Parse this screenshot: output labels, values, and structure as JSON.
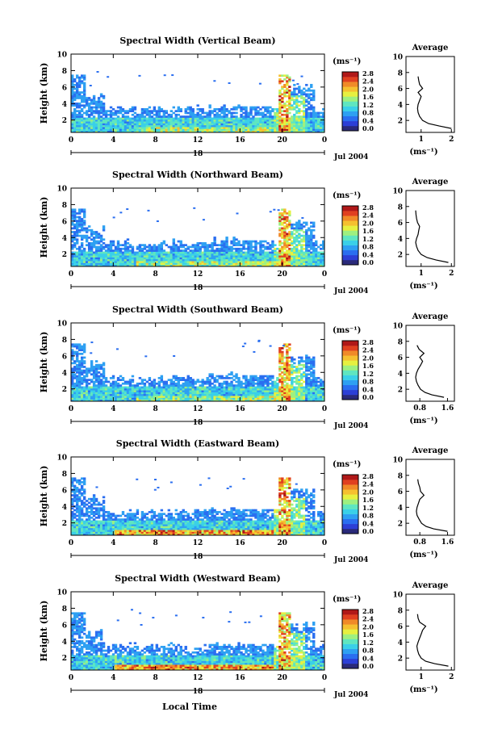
{
  "chart_data": {
    "common": {
      "ylabel": "Height (km)",
      "yticks": [
        "2",
        "4",
        "6",
        "8",
        "10"
      ],
      "ylim": [
        0.5,
        10
      ],
      "xticks": [
        "0",
        "4",
        "8",
        "12",
        "16",
        "20",
        "0"
      ],
      "xlim": [
        0,
        24
      ],
      "date_tick": "18",
      "date_label": "Jul 2004",
      "xlabel": "Local Time",
      "colorbar_unit": "(ms⁻¹)",
      "colorbar_ticks": [
        "0.0",
        "0.4",
        "0.8",
        "1.2",
        "1.6",
        "2.0",
        "2.4",
        "2.8"
      ],
      "colorbar_range": [
        0.0,
        2.8
      ],
      "colorscale": [
        "#2a2a7a",
        "#2c3fd6",
        "#2a6ef0",
        "#2ea0f2",
        "#3ad0e8",
        "#5fe6c0",
        "#9ef080",
        "#e6f040",
        "#f5c030",
        "#f08a28",
        "#e04020",
        "#b01818"
      ],
      "avg_title": "Average",
      "avg_xlabel": "(ms⁻¹)",
      "avg_height_km": [
        1.0,
        1.3,
        1.6,
        2.0,
        2.5,
        3.0,
        3.5,
        4.0,
        4.5,
        5.0,
        5.5,
        6.0,
        6.5,
        7.0,
        7.5
      ]
    },
    "panels": [
      {
        "title": "Spectral Width (Vertical Beam)",
        "type": "heatmap",
        "avg_xlim": [
          0.5,
          2.1
        ],
        "avg_xticks": [
          "1",
          "2"
        ],
        "avg_xtick_values": [
          1,
          2
        ],
        "avg_width": [
          2.0,
          1.6,
          1.25,
          1.05,
          0.95,
          0.9,
          0.88,
          0.9,
          0.95,
          1.0,
          0.9,
          1.05,
          0.95,
          0.92,
          0.9
        ]
      },
      {
        "title": "Spectral Width (Northward Beam)",
        "type": "heatmap",
        "avg_xlim": [
          0.5,
          2.1
        ],
        "avg_xticks": [
          "1",
          "2"
        ],
        "avg_xtick_values": [
          1,
          2
        ],
        "avg_width": [
          1.9,
          1.5,
          1.2,
          1.0,
          0.9,
          0.85,
          0.82,
          0.85,
          0.9,
          0.92,
          0.95,
          0.88,
          0.85,
          0.83,
          0.82
        ]
      },
      {
        "title": "Spectral Width (Southward Beam)",
        "type": "heatmap",
        "avg_xlim": [
          0.4,
          1.8
        ],
        "avg_xticks": [
          "0.8",
          "1.6"
        ],
        "avg_xtick_values": [
          0.8,
          1.6
        ],
        "avg_width": [
          1.5,
          1.15,
          0.95,
          0.82,
          0.75,
          0.7,
          0.68,
          0.7,
          0.75,
          0.82,
          0.88,
          0.8,
          0.92,
          0.78,
          0.72
        ]
      },
      {
        "title": "Spectral Width (Eastward Beam)",
        "type": "heatmap",
        "avg_xlim": [
          0.4,
          1.8
        ],
        "avg_xticks": [
          "0.8",
          "1.6"
        ],
        "avg_xtick_values": [
          0.8,
          1.6
        ],
        "avg_width": [
          1.6,
          1.2,
          0.98,
          0.85,
          0.78,
          0.72,
          0.7,
          0.72,
          0.76,
          0.8,
          0.92,
          0.82,
          0.8,
          0.76,
          0.74
        ]
      },
      {
        "title": "Spectral Width (Westward Beam)",
        "type": "heatmap",
        "avg_xlim": [
          0.5,
          2.1
        ],
        "avg_xticks": [
          "1",
          "2"
        ],
        "avg_xtick_values": [
          1,
          2
        ],
        "avg_width": [
          1.9,
          1.45,
          1.15,
          1.0,
          0.92,
          0.88,
          0.86,
          0.9,
          0.95,
          1.0,
          1.05,
          1.15,
          0.95,
          0.9,
          0.88
        ]
      }
    ]
  }
}
